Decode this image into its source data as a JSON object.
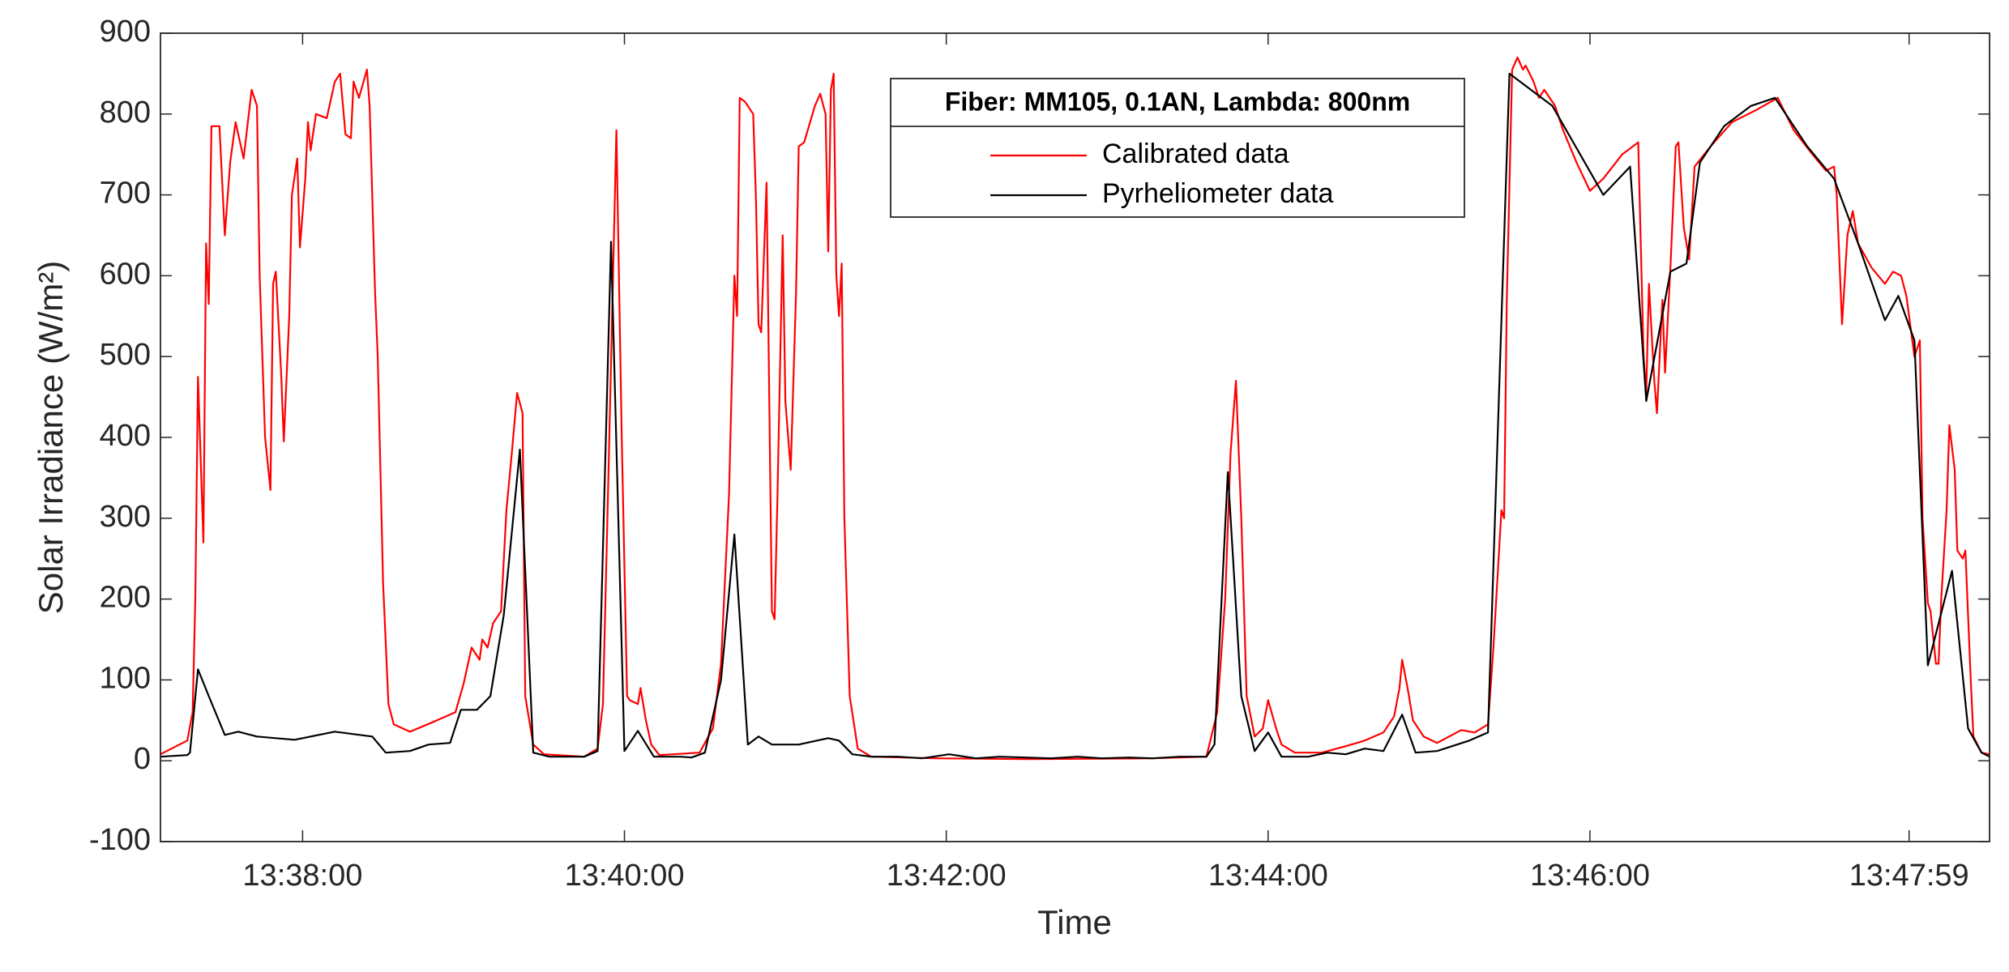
{
  "chart_data": {
    "type": "line",
    "xlabel": "Time",
    "ylabel": "Solar Irradiance (W/m²)",
    "legend_title": "Fiber: MM105, 0.1AN, Lambda: 800nm",
    "xlim": [
      "13:37:07",
      "13:48:29"
    ],
    "xticks": [
      "13:38:00",
      "13:40:00",
      "13:42:00",
      "13:44:00",
      "13:46:00",
      "13:47:59"
    ],
    "ylim": [
      -100,
      900
    ],
    "yticks": [
      -100,
      0,
      100,
      200,
      300,
      400,
      500,
      600,
      700,
      800,
      900
    ],
    "series": [
      {
        "name": "Calibrated data",
        "color": "#ff0000",
        "x": [
          "13:37:07",
          "13:37:17",
          "13:37:19",
          "13:37:20",
          "13:37:21",
          "13:37:23",
          "13:37:24",
          "13:37:25",
          "13:37:26",
          "13:37:29",
          "13:37:31",
          "13:37:33",
          "13:37:35",
          "13:37:38",
          "13:37:41",
          "13:37:43",
          "13:37:44",
          "13:37:46",
          "13:37:48",
          "13:37:49",
          "13:37:50",
          "13:37:52",
          "13:37:53",
          "13:37:55",
          "13:37:56",
          "13:37:58",
          "13:37:59",
          "13:38:01",
          "13:38:02",
          "13:38:03",
          "13:38:05",
          "13:38:09",
          "13:38:12",
          "13:38:14",
          "13:38:16",
          "13:38:18",
          "13:38:19",
          "13:38:21",
          "13:38:24",
          "13:38:25",
          "13:38:27",
          "13:38:28",
          "13:38:30",
          "13:38:32",
          "13:38:34",
          "13:38:40",
          "13:38:48",
          "13:38:57",
          "13:39:00",
          "13:39:03",
          "13:39:06",
          "13:39:07",
          "13:39:09",
          "13:39:11",
          "13:39:14",
          "13:39:16",
          "13:39:18",
          "13:39:20",
          "13:39:22",
          "13:39:23",
          "13:39:26",
          "13:39:30",
          "13:39:45",
          "13:39:50",
          "13:39:52",
          "13:39:54",
          "13:39:57",
          "13:39:59",
          "13:40:01",
          "13:40:02",
          "13:40:05",
          "13:40:06",
          "13:40:08",
          "13:40:10",
          "13:40:13",
          "13:40:28",
          "13:40:33",
          "13:40:36",
          "13:40:39",
          "13:40:41",
          "13:40:42",
          "13:40:43",
          "13:40:45",
          "13:40:48",
          "13:40:49",
          "13:40:50",
          "13:40:51",
          "13:40:53",
          "13:40:54",
          "13:40:55",
          "13:40:56",
          "13:40:57",
          "13:40:59",
          "13:41:00",
          "13:41:02",
          "13:41:04",
          "13:41:05",
          "13:41:07",
          "13:41:11",
          "13:41:13",
          "13:41:15",
          "13:41:16",
          "13:41:17",
          "13:41:18",
          "13:41:19",
          "13:41:20",
          "13:41:21",
          "13:41:22",
          "13:41:24",
          "13:41:27",
          "13:41:32",
          "13:41:56",
          "13:42:30",
          "13:43:17",
          "13:43:37",
          "13:43:41",
          "13:43:44",
          "13:43:46",
          "13:43:48",
          "13:43:50",
          "13:43:52",
          "13:43:55",
          "13:43:58",
          "13:44:00",
          "13:44:03",
          "13:44:05",
          "13:44:10",
          "13:44:20",
          "13:44:29",
          "13:44:36",
          "13:44:43",
          "13:44:47",
          "13:44:49",
          "13:44:50",
          "13:44:52",
          "13:44:54",
          "13:44:58",
          "13:45:03",
          "13:45:12",
          "13:45:17",
          "13:45:22",
          "13:45:24",
          "13:45:27",
          "13:45:28",
          "13:45:29",
          "13:45:31",
          "13:45:33",
          "13:45:35",
          "13:45:36",
          "13:45:39",
          "13:45:41",
          "13:45:43",
          "13:45:47",
          "13:45:50",
          "13:45:55",
          "13:46:00",
          "13:46:05",
          "13:46:12",
          "13:46:18",
          "13:46:20",
          "13:46:21",
          "13:46:22",
          "13:46:24",
          "13:46:25",
          "13:46:27",
          "13:46:28",
          "13:46:30",
          "13:46:32",
          "13:46:33",
          "13:46:35",
          "13:46:37",
          "13:46:39",
          "13:46:45",
          "13:46:53",
          "13:47:02",
          "13:47:10",
          "13:47:16",
          "13:47:23",
          "13:47:28",
          "13:47:31",
          "13:47:32",
          "13:47:34",
          "13:47:36",
          "13:47:38",
          "13:47:40",
          "13:47:45",
          "13:47:50",
          "13:47:53",
          "13:47:56",
          "13:47:58",
          "13:47:59",
          "13:48:01",
          "13:48:03",
          "13:48:04",
          "13:48:06",
          "13:48:07",
          "13:48:09",
          "13:48:10",
          "13:48:11",
          "13:48:13",
          "13:48:14",
          "13:48:16",
          "13:48:17",
          "13:48:19",
          "13:48:20",
          "13:48:22",
          "13:48:23",
          "13:48:26",
          "13:48:29"
        ],
        "values": [
          8,
          25,
          60,
          200,
          475,
          270,
          640,
          565,
          785,
          785,
          650,
          740,
          790,
          745,
          830,
          810,
          600,
          400,
          335,
          590,
          605,
          480,
          395,
          550,
          700,
          745,
          635,
          720,
          790,
          755,
          800,
          795,
          840,
          850,
          775,
          770,
          840,
          820,
          855,
          810,
          580,
          500,
          220,
          70,
          45,
          36,
          47,
          60,
          95,
          140,
          125,
          150,
          140,
          170,
          185,
          310,
          380,
          455,
          430,
          80,
          20,
          8,
          5,
          15,
          70,
          350,
          780,
          400,
          80,
          75,
          70,
          90,
          50,
          20,
          7,
          10,
          40,
          120,
          330,
          600,
          550,
          820,
          815,
          800,
          700,
          540,
          530,
          715,
          450,
          185,
          175,
          320,
          650,
          445,
          360,
          580,
          760,
          765,
          810,
          825,
          800,
          630,
          830,
          850,
          600,
          550,
          615,
          300,
          80,
          15,
          5,
          3,
          2,
          3,
          5,
          60,
          200,
          380,
          470,
          300,
          80,
          30,
          40,
          75,
          40,
          20,
          10,
          10,
          18,
          25,
          35,
          55,
          90,
          125,
          90,
          50,
          30,
          22,
          38,
          35,
          45,
          140,
          310,
          300,
          570,
          855,
          870,
          855,
          860,
          840,
          820,
          830,
          810,
          780,
          740,
          705,
          720,
          750,
          765,
          500,
          455,
          590,
          470,
          430,
          570,
          480,
          610,
          760,
          765,
          660,
          620,
          735,
          760,
          790,
          805,
          820,
          780,
          750,
          730,
          735,
          700,
          540,
          650,
          680,
          640,
          610,
          590,
          605,
          600,
          575,
          550,
          500,
          520,
          300,
          195,
          185,
          120,
          120,
          200,
          310,
          415,
          360,
          260,
          250,
          260,
          100,
          30,
          10,
          8
        ]
      },
      {
        "name": "Pyrheliometer data",
        "color": "#000000",
        "x": [
          "13:37:07",
          "13:37:17",
          "13:37:18",
          "13:37:21",
          "13:37:25",
          "13:37:31",
          "13:37:36",
          "13:37:43",
          "13:37:57",
          "13:38:12",
          "13:38:26",
          "13:38:31",
          "13:38:40",
          "13:38:47",
          "13:38:55",
          "13:38:59",
          "13:39:05",
          "13:39:10",
          "13:39:15",
          "13:39:21",
          "13:39:26",
          "13:39:32",
          "13:39:45",
          "13:39:50",
          "13:39:55",
          "13:40:00",
          "13:40:05",
          "13:40:11",
          "13:40:21",
          "13:40:25",
          "13:40:30",
          "13:40:36",
          "13:40:41",
          "13:40:46",
          "13:40:50",
          "13:40:55",
          "13:41:05",
          "13:41:16",
          "13:41:20",
          "13:41:25",
          "13:41:32",
          "13:41:42",
          "13:41:51",
          "13:42:01",
          "13:42:11",
          "13:42:20",
          "13:42:30",
          "13:42:39",
          "13:42:49",
          "13:42:58",
          "13:43:08",
          "13:43:17",
          "13:43:27",
          "13:43:37",
          "13:43:40",
          "13:43:45",
          "13:43:50",
          "13:43:55",
          "13:44:00",
          "13:44:05",
          "13:44:15",
          "13:44:22",
          "13:44:29",
          "13:44:36",
          "13:44:43",
          "13:44:50",
          "13:44:55",
          "13:45:03",
          "13:45:15",
          "13:45:22",
          "13:45:30",
          "13:45:38",
          "13:45:46",
          "13:46:05",
          "13:46:15",
          "13:46:21",
          "13:46:30",
          "13:46:36",
          "13:46:41",
          "13:46:50",
          "13:47:00",
          "13:47:09",
          "13:47:21",
          "13:47:31",
          "13:47:40",
          "13:47:50",
          "13:47:55",
          "13:48:01",
          "13:48:06",
          "13:48:15",
          "13:48:21",
          "13:48:26",
          "13:48:29"
        ],
        "values": [
          5,
          7,
          10,
          113,
          80,
          32,
          36,
          30,
          26,
          36,
          30,
          10,
          12,
          20,
          22,
          63,
          63,
          80,
          180,
          385,
          10,
          5,
          5,
          12,
          642,
          12,
          37,
          5,
          5,
          4,
          10,
          100,
          280,
          20,
          30,
          20,
          20,
          28,
          25,
          8,
          5,
          5,
          3,
          8,
          3,
          5,
          4,
          3,
          5,
          3,
          4,
          3,
          5,
          5,
          20,
          357,
          80,
          12,
          35,
          5,
          5,
          10,
          8,
          15,
          12,
          57,
          10,
          12,
          25,
          35,
          850,
          830,
          810,
          700,
          735,
          445,
          605,
          615,
          740,
          785,
          810,
          820,
          760,
          720,
          640,
          545,
          575,
          520,
          118,
          235,
          40,
          10,
          5
        ]
      }
    ]
  }
}
